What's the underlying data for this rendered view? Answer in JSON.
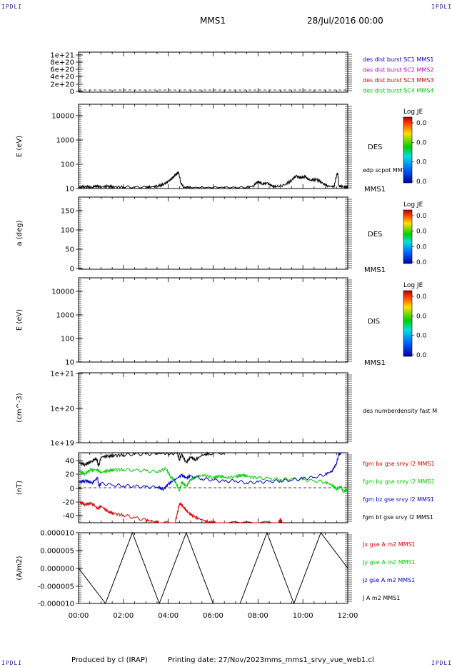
{
  "header": {
    "corner_tl": "IPDLI",
    "corner_tr": "IPDLI",
    "corner_bl": "IPDLI",
    "corner_br": "IPDLI",
    "spacecraft": "MMS1",
    "datetime": "28/Jul/2016 00:00"
  },
  "footer": {
    "produced_by": "Produced by cl (IRAP)",
    "printing_date": "Printing date: 27/Nov/2023",
    "filename": "mms_mms1_srvy_vue_web1.cl"
  },
  "colors": {
    "blue": "#0000cc",
    "magenta": "#cc00cc",
    "red": "#dd0000",
    "green": "#00cc00",
    "black": "#000000"
  },
  "time_axis": {
    "ticks": [
      "00:00",
      "02:00",
      "04:00",
      "06:00",
      "08:00",
      "10:00",
      "12:00"
    ],
    "range_hours": [
      0,
      12
    ]
  },
  "chart_data": [
    {
      "type": "line",
      "panel": "counts",
      "yticks": [
        "1e+21",
        "8e+20",
        "6e+20",
        "4e+20",
        "2e+20",
        "0"
      ],
      "ylim": [
        0,
        1e+21
      ],
      "zero_dashed": true,
      "legend": [
        {
          "name": "des dist burst SC1 MMS1",
          "color": "#0000cc"
        },
        {
          "name": "des dist burst SC2 MMS2",
          "color": "#cc00cc"
        },
        {
          "name": "des dist burst SC3 MMS3",
          "color": "#dd0000"
        },
        {
          "name": "des dist burst SC4 MMS4",
          "color": "#00cc00"
        }
      ]
    },
    {
      "type": "line",
      "panel": "des_energy",
      "ylabel": "E (eV)",
      "yscale": "log",
      "ylim": [
        10,
        20000
      ],
      "yticks": [
        "10000",
        "1000",
        "100",
        "10"
      ],
      "label": "DES",
      "side_label": "edp scpot MMS1",
      "bottom_label": "MMS1",
      "colorbar": {
        "title": "Log JE",
        "ticks": [
          "0.0",
          "0.0",
          "0.0",
          "0.0"
        ]
      },
      "series": [
        {
          "name": "edp scpot MMS1",
          "color": "#000000",
          "points": [
            [
              0,
              10.5
            ],
            [
              0.3,
              11
            ],
            [
              0.6,
              10.4
            ],
            [
              0.8,
              12
            ],
            [
              1.0,
              10.8
            ],
            [
              1.3,
              11.5
            ],
            [
              1.6,
              10.6
            ],
            [
              2.0,
              11
            ],
            [
              2.5,
              10.5
            ],
            [
              3.0,
              10.6
            ],
            [
              3.2,
              10.9
            ],
            [
              3.5,
              11.5
            ],
            [
              3.8,
              14
            ],
            [
              4.0,
              18
            ],
            [
              4.2,
              25
            ],
            [
              4.35,
              35
            ],
            [
              4.45,
              42
            ],
            [
              4.55,
              16
            ],
            [
              4.7,
              10.2
            ],
            [
              5.0,
              10.1
            ],
            [
              6.0,
              10.1
            ],
            [
              7.0,
              10.1
            ],
            [
              7.5,
              10.2
            ],
            [
              7.8,
              12
            ],
            [
              8.0,
              18
            ],
            [
              8.2,
              14
            ],
            [
              8.4,
              16
            ],
            [
              8.6,
              12
            ],
            [
              8.8,
              11
            ],
            [
              9.2,
              13
            ],
            [
              9.5,
              20
            ],
            [
              9.7,
              30
            ],
            [
              9.9,
              25
            ],
            [
              10.1,
              28
            ],
            [
              10.3,
              20
            ],
            [
              10.6,
              22
            ],
            [
              10.9,
              15
            ],
            [
              11.1,
              12
            ],
            [
              11.4,
              11
            ],
            [
              11.55,
              40
            ],
            [
              11.6,
              12
            ],
            [
              11.8,
              11
            ],
            [
              12.0,
              10.8
            ]
          ]
        }
      ]
    },
    {
      "type": "heatmap",
      "panel": "des_pitch",
      "ylabel": "a (deg)",
      "ylim": [
        0,
        180
      ],
      "yticks": [
        "150",
        "100",
        "50",
        "0"
      ],
      "label": "DES",
      "bottom_label": "MMS1",
      "colorbar": {
        "title": "Log JE",
        "ticks": [
          "0.0",
          "0.0",
          "0.0",
          "0.0"
        ]
      }
    },
    {
      "type": "heatmap",
      "panel": "dis_energy",
      "ylabel": "E (eV)",
      "yscale": "log",
      "ylim": [
        10,
        20000
      ],
      "yticks": [
        "10000",
        "1000",
        "100",
        "10"
      ],
      "label": "DIS",
      "bottom_label": "MMS1",
      "colorbar": {
        "title": "Log JE",
        "ticks": [
          "0.0",
          "0.0",
          "0.0",
          "0.0"
        ]
      }
    },
    {
      "type": "line",
      "panel": "density",
      "ylabel": "(cm^-3)",
      "yscale": "log",
      "yticks": [
        "1e+21",
        "1e+20",
        "1e+19"
      ],
      "side_label": "des numberdensity fast M"
    },
    {
      "type": "line",
      "panel": "fgm",
      "ylabel": "(nT)",
      "ylim": [
        -50,
        50
      ],
      "yticks": [
        "40",
        "20",
        "0",
        "-20",
        "-40"
      ],
      "zero_dashed": true,
      "legend": [
        {
          "name": "fgm bx gse srvy l2 MMS1",
          "color": "#dd0000"
        },
        {
          "name": "fgm by gse srvy l2 MMS1",
          "color": "#00cc00"
        },
        {
          "name": "fgm bz gse srvy l2 MMS1",
          "color": "#0000cc"
        },
        {
          "name": "fgm bt gse srvy l2 MMS1",
          "color": "#000000"
        }
      ],
      "series": [
        {
          "name": "fgm bt gse srvy l2 MMS1",
          "color": "#000000",
          "points": [
            [
              0,
              36
            ],
            [
              0.3,
              33
            ],
            [
              0.6,
              38
            ],
            [
              0.8,
              42
            ],
            [
              0.9,
              30
            ],
            [
              1.0,
              44
            ],
            [
              1.3,
              45
            ],
            [
              1.6,
              46
            ],
            [
              2.0,
              47
            ],
            [
              2.5,
              48
            ],
            [
              3.0,
              48
            ],
            [
              3.5,
              49
            ],
            [
              4.4,
              49
            ],
            [
              4.5,
              40
            ],
            [
              4.6,
              48
            ],
            [
              4.8,
              36
            ],
            [
              5.0,
              44
            ],
            [
              5.2,
              40
            ],
            [
              5.5,
              46
            ],
            [
              5.8,
              49
            ],
            [
              6.5,
              50
            ]
          ]
        },
        {
          "name": "fgm by gse srvy l2 MMS1",
          "color": "#00cc00",
          "points": [
            [
              0,
              24
            ],
            [
              0.3,
              20
            ],
            [
              0.5,
              25
            ],
            [
              0.8,
              26
            ],
            [
              1.0,
              22
            ],
            [
              1.3,
              24
            ],
            [
              1.6,
              26
            ],
            [
              2.0,
              26
            ],
            [
              2.5,
              25
            ],
            [
              3.0,
              24
            ],
            [
              3.5,
              23
            ],
            [
              3.9,
              27
            ],
            [
              4.1,
              16
            ],
            [
              4.3,
              10
            ],
            [
              4.5,
              -4
            ],
            [
              4.6,
              8
            ],
            [
              4.8,
              2
            ],
            [
              5.0,
              12
            ],
            [
              5.3,
              16
            ],
            [
              5.6,
              18
            ],
            [
              6.0,
              14
            ],
            [
              6.3,
              17
            ],
            [
              6.6,
              14
            ],
            [
              7.0,
              16
            ],
            [
              7.3,
              18
            ],
            [
              7.6,
              16
            ],
            [
              8.0,
              14
            ],
            [
              8.5,
              13
            ],
            [
              9.0,
              12
            ],
            [
              9.5,
              13
            ],
            [
              10.0,
              11
            ],
            [
              10.5,
              10
            ],
            [
              11.0,
              8
            ],
            [
              11.3,
              4
            ],
            [
              11.5,
              -2
            ],
            [
              11.7,
              2
            ],
            [
              11.8,
              -6
            ],
            [
              12.0,
              -2
            ]
          ]
        },
        {
          "name": "fgm bz gse srvy l2 MMS1",
          "color": "#0000cc",
          "points": [
            [
              0,
              8
            ],
            [
              0.3,
              10
            ],
            [
              0.6,
              7
            ],
            [
              0.85,
              14
            ],
            [
              0.9,
              2
            ],
            [
              1.0,
              6
            ],
            [
              1.5,
              4
            ],
            [
              2.0,
              3
            ],
            [
              2.5,
              2
            ],
            [
              3.0,
              1
            ],
            [
              3.5,
              1
            ],
            [
              3.8,
              -2
            ],
            [
              4.0,
              5
            ],
            [
              4.3,
              12
            ],
            [
              4.6,
              18
            ],
            [
              4.8,
              14
            ],
            [
              5.0,
              17
            ],
            [
              5.5,
              13
            ],
            [
              6.0,
              11
            ],
            [
              6.5,
              9
            ],
            [
              7.0,
              10
            ],
            [
              7.5,
              7
            ],
            [
              8.0,
              8
            ],
            [
              8.5,
              9
            ],
            [
              9.0,
              10
            ],
            [
              9.5,
              11
            ],
            [
              10.0,
              13
            ],
            [
              10.5,
              15
            ],
            [
              11.0,
              19
            ],
            [
              11.3,
              24
            ],
            [
              11.5,
              35
            ],
            [
              11.6,
              48
            ],
            [
              11.7,
              50
            ]
          ]
        },
        {
          "name": "fgm bx gse srvy l2 MMS1",
          "color": "#dd0000",
          "points": [
            [
              0,
              -20
            ],
            [
              0.3,
              -24
            ],
            [
              0.6,
              -22
            ],
            [
              0.85,
              -30
            ],
            [
              1.0,
              -26
            ],
            [
              1.3,
              -34
            ],
            [
              1.6,
              -37
            ],
            [
              2.0,
              -39
            ],
            [
              2.5,
              -43
            ],
            [
              3.0,
              -46
            ],
            [
              3.3,
              -48
            ],
            [
              3.6,
              -50
            ],
            [
              4.3,
              -50
            ],
            [
              4.4,
              -38
            ],
            [
              4.5,
              -22
            ],
            [
              4.7,
              -28
            ],
            [
              4.9,
              -36
            ],
            [
              5.2,
              -42
            ],
            [
              5.5,
              -46
            ],
            [
              5.8,
              -49
            ],
            [
              6.1,
              -50
            ],
            [
              8.9,
              -50
            ],
            [
              9.0,
              -46
            ],
            [
              9.1,
              -50
            ]
          ]
        }
      ]
    },
    {
      "type": "line",
      "panel": "current",
      "ylabel": "(A/m2)",
      "ylim": [
        -1e-05,
        1e-05
      ],
      "yticks": [
        "0.000010",
        "0.000005",
        "0.000000",
        "-0.000005",
        "-0.000010"
      ],
      "legend": [
        {
          "name": "Jx gse A m2 MMS1",
          "color": "#dd0000"
        },
        {
          "name": "Jy gse A m2 MMS1",
          "color": "#00cc00"
        },
        {
          "name": "Jz gse A m2 MMS1",
          "color": "#0000cc"
        },
        {
          "name": "J A m2 MMS1",
          "color": "#000000"
        }
      ],
      "series": [
        {
          "name": "J A m2 MMS1",
          "color": "#000000",
          "points": [
            [
              0,
              0
            ],
            [
              12,
              0
            ]
          ]
        }
      ]
    }
  ]
}
